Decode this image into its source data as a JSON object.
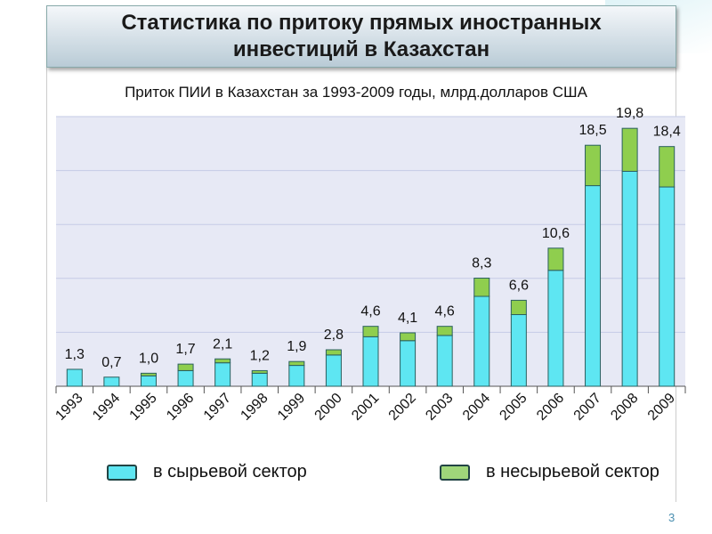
{
  "title": "Статистика по притоку прямых иностранных инвестиций в Казахстан",
  "page_number": "3",
  "chart_data": {
    "type": "bar",
    "stacked": true,
    "title": "Приток ПИИ в Казахстан за 1993-2009 годы, млрд.долларов США",
    "categories": [
      "1993",
      "1994",
      "1995",
      "1996",
      "1997",
      "1998",
      "1999",
      "2000",
      "2001",
      "2002",
      "2003",
      "2004",
      "2005",
      "2006",
      "2007",
      "2008",
      "2009"
    ],
    "totals": [
      "1,3",
      "0,7",
      "1,0",
      "1,7",
      "2,1",
      "1,2",
      "1,9",
      "2,8",
      "4,6",
      "4,1",
      "4,6",
      "8,3",
      "6,6",
      "10,6",
      "18,5",
      "19,8",
      "18,4"
    ],
    "series": [
      {
        "name": "в сырьевой сектор",
        "color": "#5ee6f2",
        "values": [
          1.3,
          0.7,
          0.8,
          1.2,
          1.8,
          1.0,
          1.6,
          2.4,
          3.8,
          3.5,
          3.9,
          6.9,
          5.5,
          8.9,
          15.4,
          16.5,
          15.3
        ]
      },
      {
        "name": "в несырьевой сектор",
        "color": "#8fce4e",
        "values": [
          0,
          0,
          0.2,
          0.5,
          0.3,
          0.2,
          0.3,
          0.4,
          0.8,
          0.6,
          0.7,
          1.4,
          1.1,
          1.7,
          3.1,
          3.3,
          3.1
        ]
      }
    ],
    "ylim": [
      0,
      20.7
    ],
    "grid": true,
    "legend": "bottom"
  }
}
